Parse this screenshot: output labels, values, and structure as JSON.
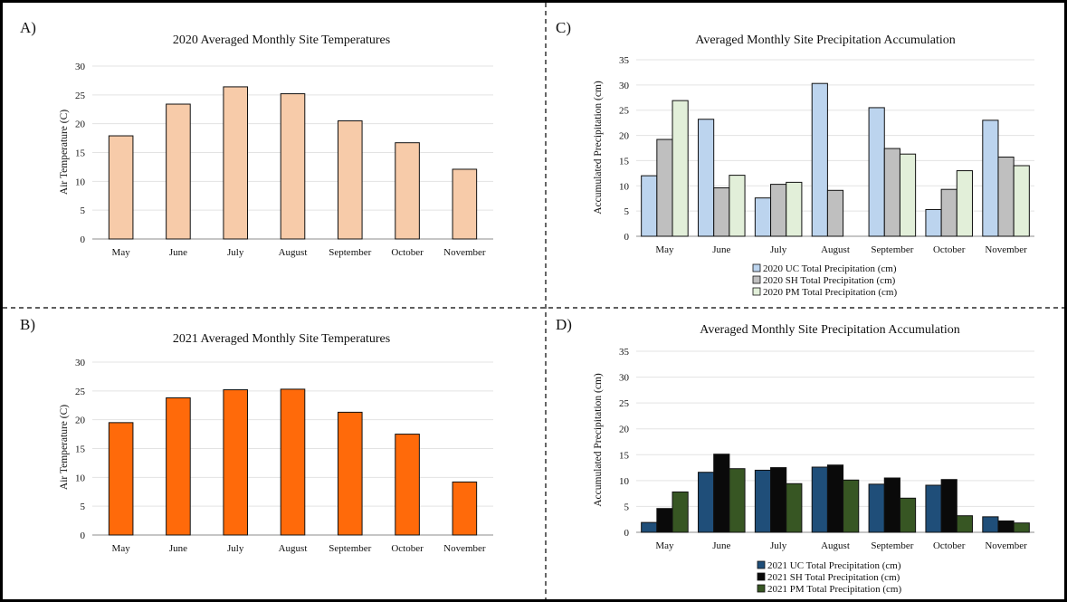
{
  "chart_data": [
    {
      "id": "A",
      "panel_label": "A)",
      "type": "bar",
      "title": "2020 Averaged Monthly Site Temperatures",
      "ylabel": "Air Temperature (C)",
      "xlabel": "",
      "ylim": [
        0,
        30
      ],
      "yticks": [
        0,
        5,
        10,
        15,
        20,
        25,
        30
      ],
      "categories": [
        "May",
        "June",
        "July",
        "August",
        "September",
        "October",
        "November"
      ],
      "series": [
        {
          "values": [
            17.9,
            23.4,
            26.4,
            25.2,
            20.5,
            16.7,
            12.1
          ],
          "color": "#f7cba9"
        }
      ],
      "grid": true,
      "legend": []
    },
    {
      "id": "B",
      "panel_label": "B)",
      "type": "bar",
      "title": "2021 Averaged Monthly Site Temperatures",
      "ylabel": "Air Temperature (C)",
      "xlabel": "",
      "ylim": [
        0,
        30
      ],
      "yticks": [
        0,
        5,
        10,
        15,
        20,
        25,
        30
      ],
      "categories": [
        "May",
        "June",
        "July",
        "August",
        "September",
        "October",
        "November"
      ],
      "series": [
        {
          "values": [
            19.5,
            23.8,
            25.2,
            25.3,
            21.3,
            17.5,
            9.2
          ],
          "color": "#ff6a0a"
        }
      ],
      "grid": true,
      "legend": []
    },
    {
      "id": "C",
      "panel_label": "C)",
      "type": "bar",
      "title": "Averaged Monthly Site Precipitation Accumulation",
      "ylabel": "Accumulated Precipitation (cm)",
      "xlabel": "",
      "ylim": [
        0,
        35
      ],
      "yticks": [
        0,
        5,
        10,
        15,
        20,
        25,
        30,
        35
      ],
      "categories": [
        "May",
        "June",
        "July",
        "August",
        "September",
        "October",
        "November"
      ],
      "series": [
        {
          "name": "2020 UC Total Precipitation (cm)",
          "values": [
            12.0,
            23.2,
            7.6,
            30.3,
            25.5,
            5.3,
            23.0
          ],
          "color": "#bcd4ee"
        },
        {
          "name": "2020 SH Total Precipitation (cm)",
          "values": [
            19.2,
            9.6,
            10.3,
            9.1,
            17.4,
            9.3,
            15.7
          ],
          "color": "#bfbfbf"
        },
        {
          "name": "2020 PM Total Precipitation (cm)",
          "values": [
            26.9,
            12.1,
            10.7,
            0,
            16.3,
            13.0,
            14.0
          ],
          "color": "#e2efd9"
        }
      ],
      "grid": true,
      "legend_position": "bottom"
    },
    {
      "id": "D",
      "panel_label": "D)",
      "type": "bar",
      "title": "Averaged Monthly Site Precipitation Accumulation",
      "ylabel": "Accumulated Precipitation (cm)",
      "xlabel": "",
      "ylim": [
        0,
        35
      ],
      "yticks": [
        0,
        5,
        10,
        15,
        20,
        25,
        30,
        35
      ],
      "categories": [
        "May",
        "June",
        "July",
        "August",
        "September",
        "October",
        "November"
      ],
      "series": [
        {
          "name": "2021 UC Total Precipitation (cm)",
          "values": [
            1.9,
            11.6,
            12.0,
            12.6,
            9.3,
            9.1,
            3.0
          ],
          "color": "#1f4e79"
        },
        {
          "name": "2021 SH Total Precipitation (cm)",
          "values": [
            4.6,
            15.1,
            12.5,
            13.0,
            10.5,
            10.2,
            2.2
          ],
          "color": "#0a0a0a"
        },
        {
          "name": "2021 PM Total Precipitation (cm)",
          "values": [
            7.8,
            12.3,
            9.4,
            10.1,
            6.6,
            3.2,
            1.8
          ],
          "color": "#375623"
        }
      ],
      "grid": true,
      "legend_position": "bottom"
    }
  ]
}
